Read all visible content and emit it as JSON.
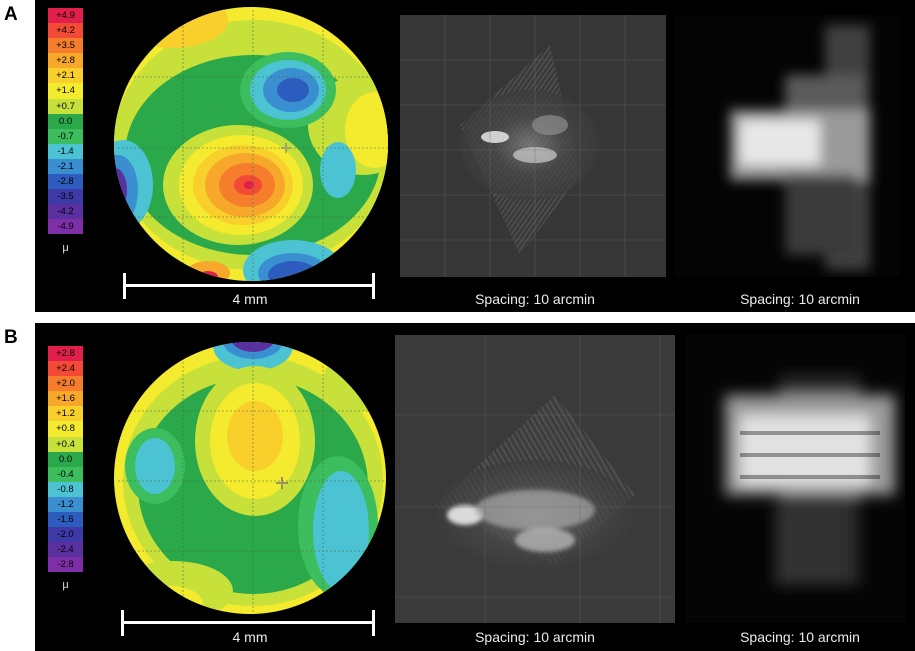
{
  "panels": [
    {
      "letter": "A",
      "legend": [
        "+4.9",
        "+4.2",
        "+3.5",
        "+2.8",
        "+2.1",
        "+1.4",
        "+0.7",
        "0.0",
        "-0.7",
        "-1.4",
        "-2.1",
        "-2.8",
        "-3.5",
        "-4.2",
        "-4.9"
      ],
      "legend_colors": [
        "#e0204a",
        "#f24a36",
        "#f57d2c",
        "#f7a82a",
        "#f8cf2b",
        "#f4ea2e",
        "#c8e03a",
        "#2aa84a",
        "#3cbd5e",
        "#4cc3d2",
        "#3a8fd0",
        "#2c5cbd",
        "#3d3aa8",
        "#5a2fa0",
        "#7e2fa8"
      ],
      "unit": "μ",
      "scale_label": "4 mm",
      "caption_middle": "Spacing: 10 arcmin",
      "caption_right": "Spacing: 10 arcmin"
    },
    {
      "letter": "B",
      "legend": [
        "+2.8",
        "+2.4",
        "+2.0",
        "+1.6",
        "+1.2",
        "+0.8",
        "+0.4",
        "0.0",
        "-0.4",
        "-0.8",
        "-1.2",
        "-1.6",
        "-2.0",
        "-2.4",
        "-2.8"
      ],
      "legend_colors": [
        "#e0204a",
        "#f24a36",
        "#f57d2c",
        "#f7a82a",
        "#f8cf2b",
        "#f4ea2e",
        "#c8e03a",
        "#2aa84a",
        "#3cbd5e",
        "#4cc3d2",
        "#3a8fd0",
        "#2c5cbd",
        "#3d3aa8",
        "#5a2fa0",
        "#7e2fa8"
      ],
      "unit": "μ",
      "scale_label": "4 mm",
      "caption_middle": "Spacing: 10 arcmin",
      "caption_right": "Spacing: 10 arcmin"
    }
  ]
}
